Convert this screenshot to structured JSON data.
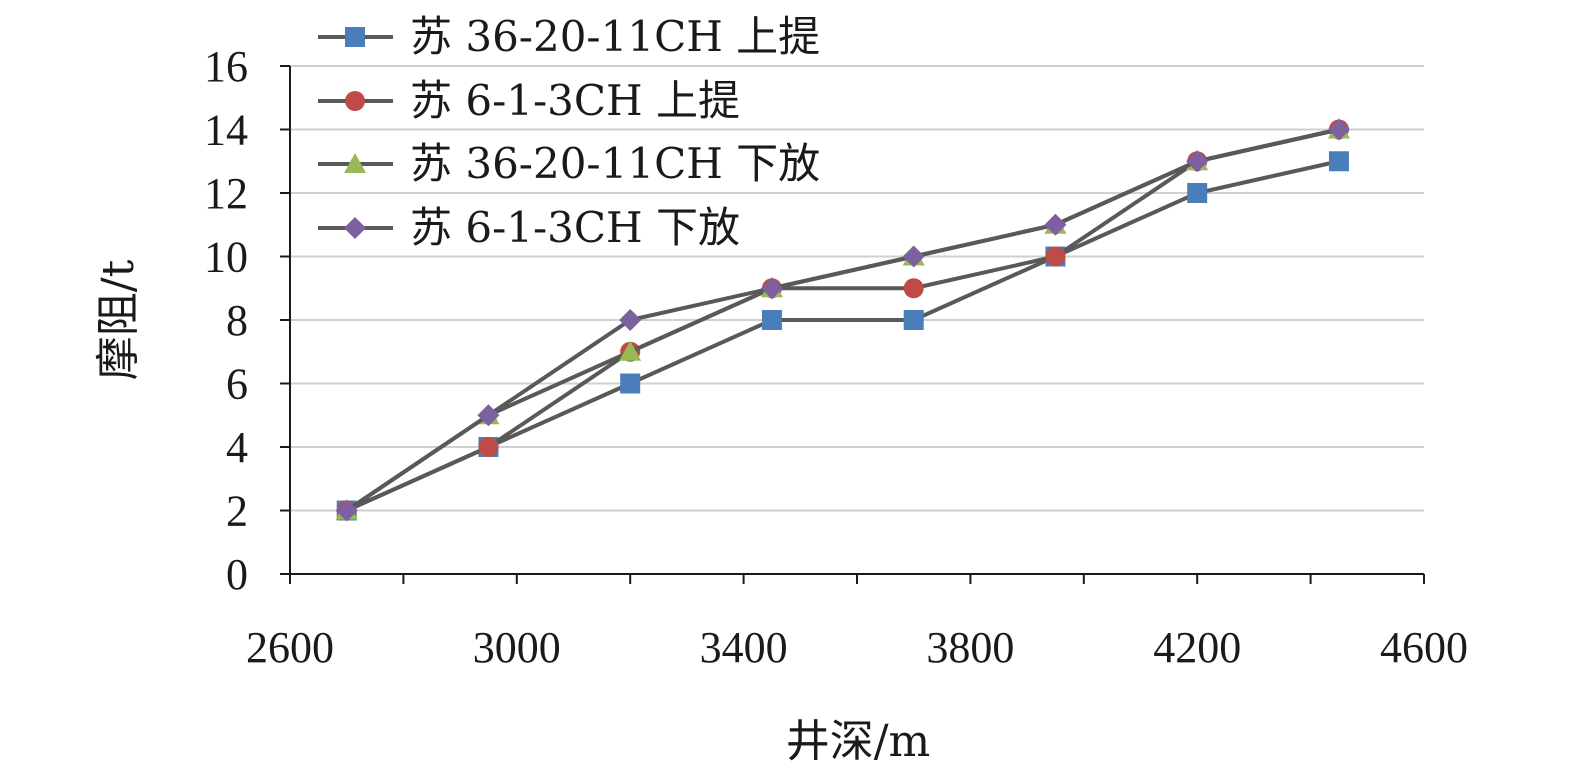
{
  "chart_data": {
    "type": "line",
    "title": "",
    "xlabel": "井深/m",
    "ylabel": "摩阻/t",
    "xlim": [
      2600,
      4600
    ],
    "ylim": [
      0,
      16
    ],
    "xticks": [
      2600,
      3000,
      3400,
      3800,
      4200,
      4600
    ],
    "yticks": [
      0,
      2,
      4,
      6,
      8,
      10,
      12,
      14,
      16
    ],
    "grid": "horizontal",
    "legend_position": "top-left",
    "x": [
      2700,
      2950,
      3200,
      3450,
      3700,
      3950,
      4200,
      4450
    ],
    "series": [
      {
        "name": "苏 36-20-11CH 上提",
        "marker": "square",
        "color": "#4a7ebb",
        "values": [
          2,
          4,
          6,
          8,
          8,
          10,
          12,
          13
        ]
      },
      {
        "name": "苏 6-1-3CH 上提",
        "marker": "circle",
        "color": "#be4b48",
        "values": [
          2,
          4,
          7,
          9,
          9,
          10,
          13,
          14
        ]
      },
      {
        "name": "苏 36-20-11CH 下放",
        "marker": "triangle",
        "color": "#98b954",
        "values": [
          2,
          5,
          7,
          9,
          10,
          11,
          13,
          14
        ]
      },
      {
        "name": "苏 6-1-3CH 下放",
        "marker": "diamond",
        "color": "#7d60a0",
        "values": [
          2,
          5,
          8,
          9,
          10,
          11,
          13,
          14
        ]
      }
    ],
    "line_color": "#595959"
  }
}
